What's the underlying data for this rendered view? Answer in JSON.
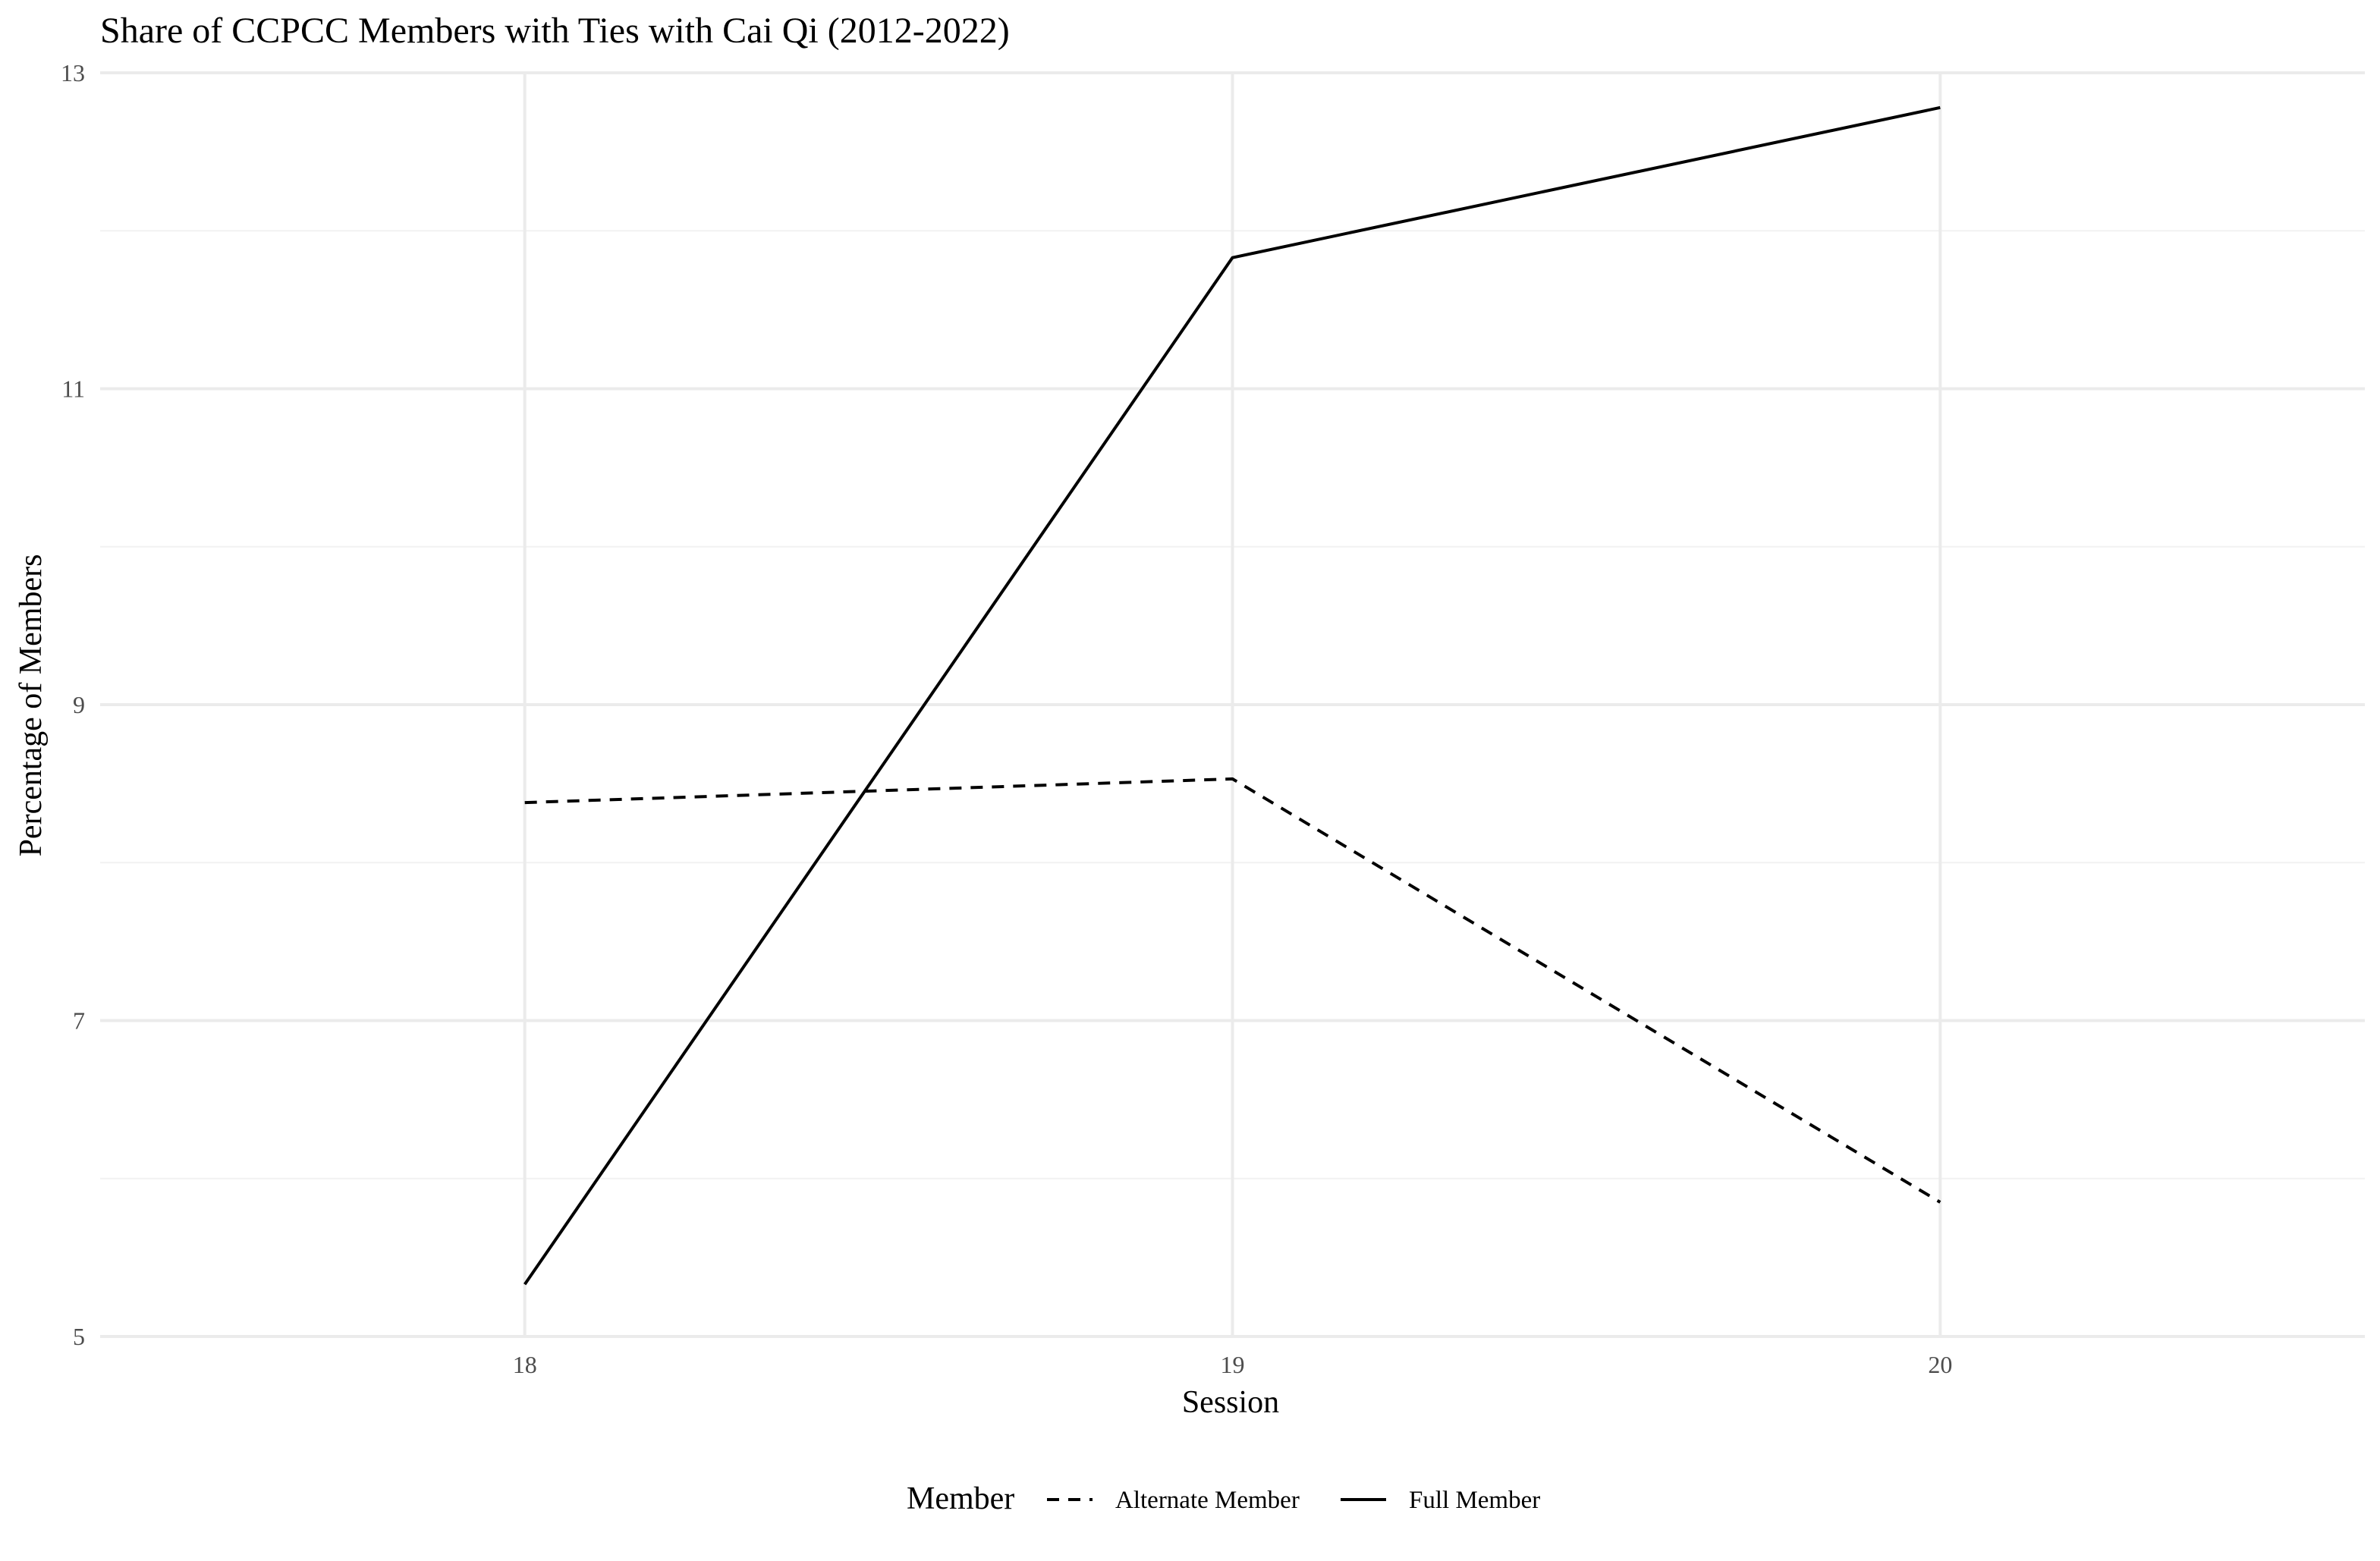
{
  "chart_data": {
    "type": "line",
    "title": "Share of CCPCC Members with Ties with Cai Qi (2012-2022)",
    "xlabel": "Session",
    "ylabel": "Percentage of Members",
    "x": [
      18,
      19,
      20
    ],
    "xlim": [
      17.4,
      20.6
    ],
    "ylim": [
      5,
      13
    ],
    "yticks": [
      5,
      7,
      9,
      11,
      13
    ],
    "xticks": [
      18,
      19,
      20
    ],
    "grid": true,
    "legend": {
      "title": "Member",
      "position": "bottom"
    },
    "series": [
      {
        "name": "Alternate Member",
        "linetype": "dashed",
        "color": "#000000",
        "values": [
          8.38,
          8.53,
          5.85
        ]
      },
      {
        "name": "Full Member",
        "linetype": "solid",
        "color": "#000000",
        "values": [
          5.33,
          11.83,
          12.78
        ]
      }
    ]
  }
}
